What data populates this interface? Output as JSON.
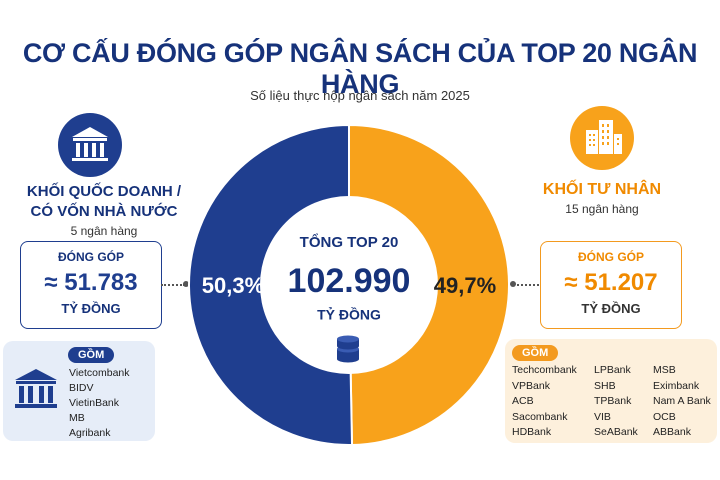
{
  "title": "CƠ CẤU ĐÓNG GÓP NGÂN SÁCH CỦA TOP 20 NGÂN HÀNG",
  "subtitle": "Số liệu thực nộp ngân sách năm 2025",
  "left_group": {
    "title_line1": "KHỐI QUỐC DOANH /",
    "title_line2": "CÓ VỐN NHÀ NƯỚC",
    "count": "5 ngân hàng",
    "contrib_label": "ĐÓNG GÓP",
    "contrib_value": "≈ 51.783",
    "contrib_unit": "TỶ ĐỒNG",
    "members_label": "GỒM",
    "members": [
      "Vietcombank",
      "BIDV",
      "VietinBank",
      "MB",
      "Agribank"
    ]
  },
  "right_group": {
    "title": "KHỐI TƯ NHÂN",
    "count": "15 ngân hàng",
    "contrib_label": "ĐÓNG GÓP",
    "contrib_value": "≈ 51.207",
    "contrib_unit": "TỶ ĐỒNG",
    "members_label": "GỒM",
    "members": [
      "Techcombank",
      "LPBank",
      "MSB",
      "VPBank",
      "SHB",
      "Eximbank",
      "ACB",
      "TPBank",
      "Nam A Bank",
      "Sacombank",
      "VIB",
      "OCB",
      "HDBank",
      "SeABank",
      "ABBank"
    ]
  },
  "center": {
    "label": "TỔNG TOP 20",
    "value": "102.990",
    "unit": "TỶ ĐỒNG"
  },
  "colors": {
    "navy": "#1f3e8f",
    "orange": "#f8a21b",
    "title_navy": "#16327a"
  },
  "icons": {
    "left": "bank-building-icon",
    "right": "office-buildings-icon",
    "center": "coin-stack-icon",
    "members_left": "bank-building-icon"
  },
  "chart_data": {
    "type": "pie",
    "categories": [
      "KHỐI QUỐC DOANH / CÓ VỐN NHÀ NƯỚC",
      "KHỐI TƯ NHÂN"
    ],
    "values": [
      50.3,
      49.7
    ],
    "value_labels": [
      "50,3%",
      "49,7%"
    ],
    "colors": [
      "#1f3e8f",
      "#f8a21b"
    ]
  }
}
